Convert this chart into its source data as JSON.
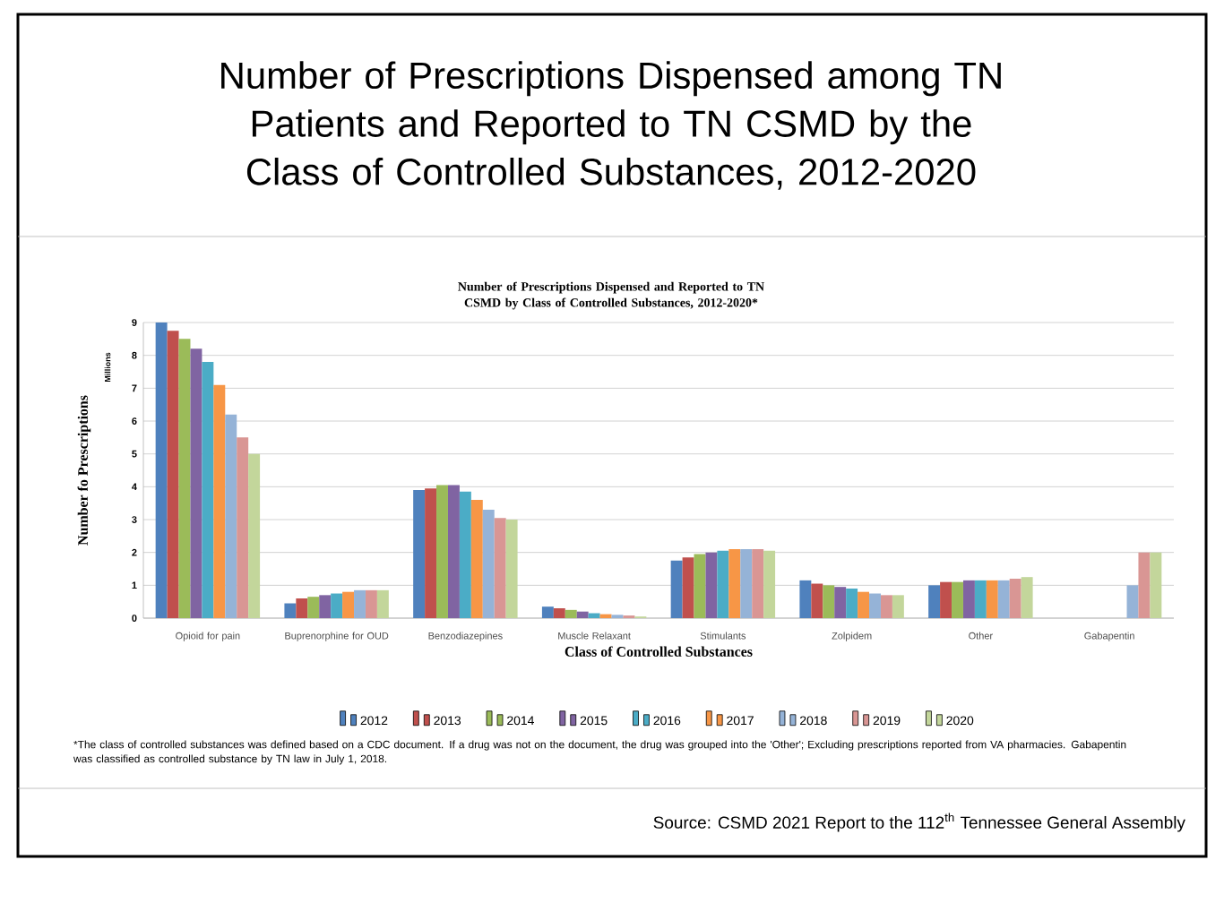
{
  "chart_data": {
    "type": "bar",
    "title": "Number of Prescriptions Dispensed among TN Patients and Reported to TN CSMD by the Class of Controlled Substances, 2012-2020",
    "subtitle": "Number of Prescriptions Dispensed and Reported to TN CSMD by Class of Controlled Substances, 2012-2020*",
    "xlabel": "Class of Controlled Substances",
    "ylabel": "Number fo Prescriptions",
    "annotations": [
      "Millions",
      "*The class of controlled substances was defined based on a CDC document. If a drug was not on the document, the drug was grouped into the 'Other'; Excluding prescriptions reported from VA pharmacies. Gabapentin was classified as controlled substance by TN law in July 1, 2018.",
      "Source: CSMD 2021 Report to the 112$^{th}$ Tennessee General Assembly"
    ],
    "categories": [
      "Opioid for pain",
      "Buprenorphine for OUD",
      "Benzodiazepines",
      "Muscle Relaxant",
      "Stimulants",
      "Zolpidem",
      "Other",
      "Gabapentin"
    ],
    "series": [
      {
        "name": "2012",
        "color": "#4f81bd",
        "values": [
          9.0,
          0.45,
          3.9,
          0.35,
          1.75,
          1.15,
          1.0,
          null
        ]
      },
      {
        "name": "2013",
        "color": "#c0504d",
        "values": [
          8.75,
          0.6,
          3.95,
          0.3,
          1.85,
          1.05,
          1.1,
          null
        ]
      },
      {
        "name": "2014",
        "color": "#9bbb59",
        "values": [
          8.5,
          0.65,
          4.05,
          0.25,
          1.95,
          1.0,
          1.1,
          null
        ]
      },
      {
        "name": "2015",
        "color": "#8064a2",
        "values": [
          8.2,
          0.7,
          4.05,
          0.2,
          2.0,
          0.95,
          1.15,
          null
        ]
      },
      {
        "name": "2016",
        "color": "#4bacc6",
        "values": [
          7.8,
          0.75,
          3.85,
          0.15,
          2.05,
          0.9,
          1.15,
          null
        ]
      },
      {
        "name": "2017",
        "color": "#f79646",
        "values": [
          7.1,
          0.8,
          3.6,
          0.12,
          2.1,
          0.8,
          1.15,
          null
        ]
      },
      {
        "name": "2018",
        "color": "#95b3d7",
        "values": [
          6.2,
          0.85,
          3.3,
          0.1,
          2.1,
          0.75,
          1.15,
          1.0
        ]
      },
      {
        "name": "2019",
        "color": "#d99694",
        "values": [
          5.5,
          0.85,
          3.05,
          0.08,
          2.1,
          0.7,
          1.2,
          2.0
        ]
      },
      {
        "name": "2020",
        "color": "#c3d69b",
        "values": [
          5.0,
          0.85,
          3.0,
          0.05,
          2.05,
          0.7,
          1.25,
          2.0
        ]
      }
    ],
    "ylim": [
      0,
      9
    ],
    "yticks": [
      0,
      1,
      2,
      3,
      4,
      5,
      6,
      7,
      8,
      9
    ],
    "grid": "y",
    "legend": "bottom"
  }
}
